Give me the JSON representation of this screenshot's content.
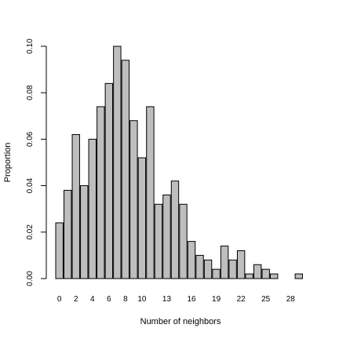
{
  "chart_data": {
    "type": "bar",
    "title": "",
    "xlabel": "Number of neighbors",
    "ylabel": "Proportion",
    "categories": [
      "0",
      "1",
      "2",
      "3",
      "4",
      "5",
      "6",
      "7",
      "8",
      "9",
      "10",
      "11",
      "12",
      "13",
      "14",
      "15",
      "16",
      "17",
      "18",
      "19",
      "20",
      "21",
      "22",
      "23",
      "24",
      "25",
      "26",
      "27",
      "28",
      "29"
    ],
    "values": [
      0.024,
      0.038,
      0.062,
      0.04,
      0.06,
      0.074,
      0.084,
      0.1,
      0.094,
      0.068,
      0.052,
      0.074,
      0.032,
      0.036,
      0.042,
      0.032,
      0.016,
      0.01,
      0.008,
      0.004,
      0.014,
      0.008,
      0.012,
      0.002,
      0.006,
      0.004,
      0.002,
      0.0,
      0.0,
      0.002
    ],
    "x_tick_labels": [
      "0",
      "2",
      "4",
      "6",
      "8",
      "10",
      "13",
      "16",
      "19",
      "22",
      "25",
      "28"
    ],
    "y_ticks": [
      "0.00",
      "0.02",
      "0.04",
      "0.06",
      "0.08",
      "0.10"
    ],
    "ylim": [
      0,
      0.1
    ],
    "grid": false,
    "bar_fill": "#bebebe",
    "bar_stroke": "#000000"
  }
}
